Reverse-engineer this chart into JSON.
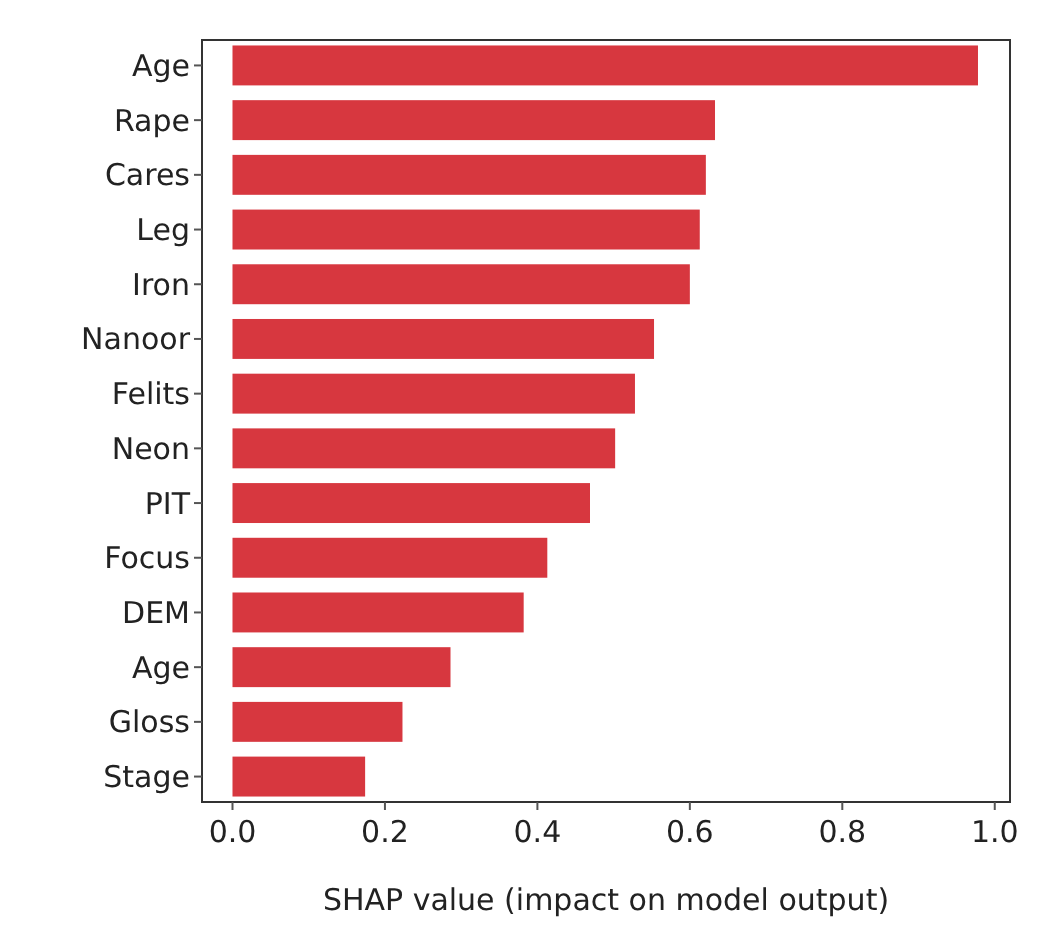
{
  "chart_data": {
    "type": "bar",
    "orientation": "horizontal",
    "xlabel": "SHAP value (impact on model output)",
    "categories": [
      "Age",
      "Rape",
      "Cares",
      "Leg",
      "Iron",
      "Nanoor",
      "Felits",
      "Neon",
      "PIT",
      "Focus",
      "DEM",
      "Age",
      "Gloss",
      "Stage"
    ],
    "values": [
      0.978,
      0.633,
      0.621,
      0.613,
      0.6,
      0.553,
      0.528,
      0.502,
      0.469,
      0.413,
      0.382,
      0.286,
      0.223,
      0.174
    ],
    "color": "#d7373f",
    "xlim": [
      -0.04,
      1.02
    ],
    "xticks": [
      {
        "value": 0,
        "label": "0.0"
      },
      {
        "value": 0.2,
        "label": "0.2"
      },
      {
        "value": 0.4,
        "label": "0.4"
      },
      {
        "value": 0.6,
        "label": "0.6"
      },
      {
        "value": 0.8,
        "label": "0.8"
      },
      {
        "value": 1,
        "label": "1.0"
      }
    ],
    "grid": false
  }
}
